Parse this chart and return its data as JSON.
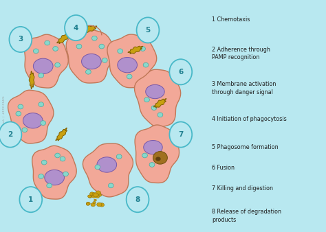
{
  "background_color": "#b8e8f0",
  "cell_color": "#f2a898",
  "cell_edge": "#c07858",
  "nucleus_color": "#b090cc",
  "nucleus_edge": "#7858a8",
  "vacuole_color": "#88d8cc",
  "vacuole_edge": "#48a8a0",
  "bacteria_color": "#c8a010",
  "bacteria_edge": "#806000",
  "circle_fill": "#b8e8f0",
  "circle_edge": "#48b8c8",
  "circle_text": "#208090",
  "legend_text_color": "#202020",
  "legend_items": [
    "1 Chemotaxis",
    "2 Adherence through\nPAMP recognition",
    "3 Membrane activation\nthrough danger signal",
    "4 Initiation of phagocytosis",
    "5 Phagosome formation",
    "6 Fusion",
    "7 Killing and digestion",
    "8 Release of degradation\nproducts"
  ]
}
